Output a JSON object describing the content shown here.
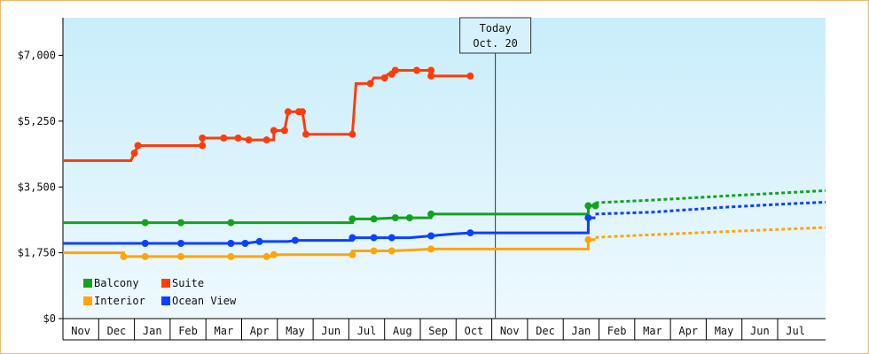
{
  "chart_data": {
    "type": "line",
    "y_ticks": [
      "$0",
      "$1,750",
      "$3,500",
      "$5,250",
      "$7,000"
    ],
    "ylim": [
      0,
      8000
    ],
    "y_tick_values": [
      0,
      1750,
      3500,
      5250,
      7000
    ],
    "x_months": [
      "Nov",
      "Dec",
      "Jan",
      "Feb",
      "Mar",
      "Apr",
      "May",
      "Jun",
      "Jul",
      "Aug",
      "Sep",
      "Oct",
      "Nov",
      "Dec",
      "Jan",
      "Feb",
      "Mar",
      "Apr",
      "May",
      "Jun",
      "Jul"
    ],
    "today": {
      "line1": "Today",
      "line2": "Oct. 20",
      "month_pos": 11.6
    },
    "background_gradient": [
      "#c9edfb",
      "#eef9fe"
    ],
    "series": [
      {
        "name": "Balcony",
        "color": "#13a21e",
        "points": [
          [
            -0.5,
            2550
          ],
          [
            1.8,
            2550
          ],
          [
            2.8,
            2550
          ],
          [
            4.2,
            2550
          ],
          [
            7.6,
            2550
          ],
          [
            7.6,
            2650
          ],
          [
            8.2,
            2650
          ],
          [
            8.8,
            2680
          ],
          [
            9.2,
            2680
          ],
          [
            9.8,
            2680
          ],
          [
            9.8,
            2780
          ],
          [
            14.2,
            2780
          ],
          [
            14.2,
            3000
          ],
          [
            14.4,
            3000
          ]
        ],
        "marker_idx": [
          1,
          2,
          3,
          5,
          6,
          7,
          8,
          10,
          12,
          13
        ],
        "projection": [
          [
            14.4,
            3080
          ],
          [
            16,
            3150
          ],
          [
            18,
            3260
          ],
          [
            20,
            3360
          ],
          [
            22,
            3460
          ],
          [
            24,
            3560
          ],
          [
            25.5,
            3680
          ]
        ]
      },
      {
        "name": "Suite",
        "color": "#ff3c0a",
        "points": [
          [
            -0.5,
            4200
          ],
          [
            1.4,
            4200
          ],
          [
            1.5,
            4400
          ],
          [
            1.6,
            4600
          ],
          [
            2.8,
            4600
          ],
          [
            3.4,
            4600
          ],
          [
            3.4,
            4800
          ],
          [
            3.7,
            4800
          ],
          [
            4.0,
            4800
          ],
          [
            4.4,
            4800
          ],
          [
            4.7,
            4750
          ],
          [
            5.2,
            4750
          ],
          [
            5.4,
            4750
          ],
          [
            5.4,
            5000
          ],
          [
            5.7,
            5000
          ],
          [
            5.8,
            5500
          ],
          [
            6.1,
            5500
          ],
          [
            6.2,
            5500
          ],
          [
            6.3,
            4900
          ],
          [
            7.6,
            4900
          ],
          [
            7.7,
            6250
          ],
          [
            8.1,
            6250
          ],
          [
            8.2,
            6400
          ],
          [
            8.5,
            6400
          ],
          [
            8.6,
            6500
          ],
          [
            8.7,
            6500
          ],
          [
            8.8,
            6600
          ],
          [
            9.2,
            6600
          ],
          [
            9.4,
            6600
          ],
          [
            9.8,
            6600
          ],
          [
            9.8,
            6450
          ],
          [
            10.4,
            6450
          ],
          [
            10.9,
            6450
          ]
        ],
        "marker_idx": [
          2,
          3,
          5,
          6,
          8,
          9,
          10,
          11,
          13,
          14,
          15,
          16,
          17,
          18,
          19,
          21,
          23,
          25,
          26,
          28,
          29,
          30,
          32
        ]
      },
      {
        "name": "Ocean View",
        "color": "#0a40ff",
        "points": [
          [
            -0.5,
            2000
          ],
          [
            1.8,
            2000
          ],
          [
            2.8,
            2000
          ],
          [
            4.2,
            2000
          ],
          [
            4.6,
            2000
          ],
          [
            5.0,
            2050
          ],
          [
            5.8,
            2050
          ],
          [
            6.0,
            2080
          ],
          [
            7.6,
            2080
          ],
          [
            7.6,
            2150
          ],
          [
            8.2,
            2150
          ],
          [
            8.7,
            2150
          ],
          [
            9.2,
            2150
          ],
          [
            9.8,
            2200
          ],
          [
            10.4,
            2250
          ],
          [
            10.9,
            2280
          ],
          [
            14.2,
            2280
          ],
          [
            14.2,
            2680
          ],
          [
            14.4,
            2680
          ]
        ],
        "marker_idx": [
          1,
          2,
          3,
          4,
          5,
          7,
          9,
          10,
          11,
          13,
          15,
          17
        ],
        "projection": [
          [
            14.4,
            2780
          ],
          [
            16,
            2830
          ],
          [
            18,
            2960
          ],
          [
            20,
            3060
          ],
          [
            22,
            3140
          ],
          [
            24,
            3200
          ],
          [
            25.5,
            3280
          ]
        ]
      },
      {
        "name": "Interior",
        "color": "#ffa50a",
        "points": [
          [
            -0.5,
            1750
          ],
          [
            1.2,
            1750
          ],
          [
            1.2,
            1650
          ],
          [
            1.8,
            1650
          ],
          [
            2.8,
            1650
          ],
          [
            4.2,
            1650
          ],
          [
            4.8,
            1650
          ],
          [
            5.2,
            1650
          ],
          [
            5.3,
            1650
          ],
          [
            5.4,
            1700
          ],
          [
            7.6,
            1700
          ],
          [
            7.6,
            1800
          ],
          [
            8.2,
            1800
          ],
          [
            8.7,
            1800
          ],
          [
            9.2,
            1820
          ],
          [
            9.8,
            1850
          ],
          [
            14.2,
            1850
          ],
          [
            14.2,
            2100
          ],
          [
            14.4,
            2100
          ]
        ],
        "marker_idx": [
          2,
          3,
          4,
          5,
          7,
          9,
          10,
          12,
          13,
          15,
          17
        ],
        "projection": [
          [
            14.4,
            2160
          ],
          [
            16,
            2230
          ],
          [
            18,
            2310
          ],
          [
            20,
            2390
          ],
          [
            22,
            2460
          ],
          [
            24,
            2530
          ],
          [
            25.5,
            2600
          ]
        ]
      }
    ],
    "legend": [
      {
        "name": "Balcony",
        "color": "#13a21e"
      },
      {
        "name": "Suite",
        "color": "#ff3c0a"
      },
      {
        "name": "Interior",
        "color": "#ffa50a"
      },
      {
        "name": "Ocean View",
        "color": "#0a40ff"
      }
    ],
    "legend_placement": "bottom-left"
  }
}
